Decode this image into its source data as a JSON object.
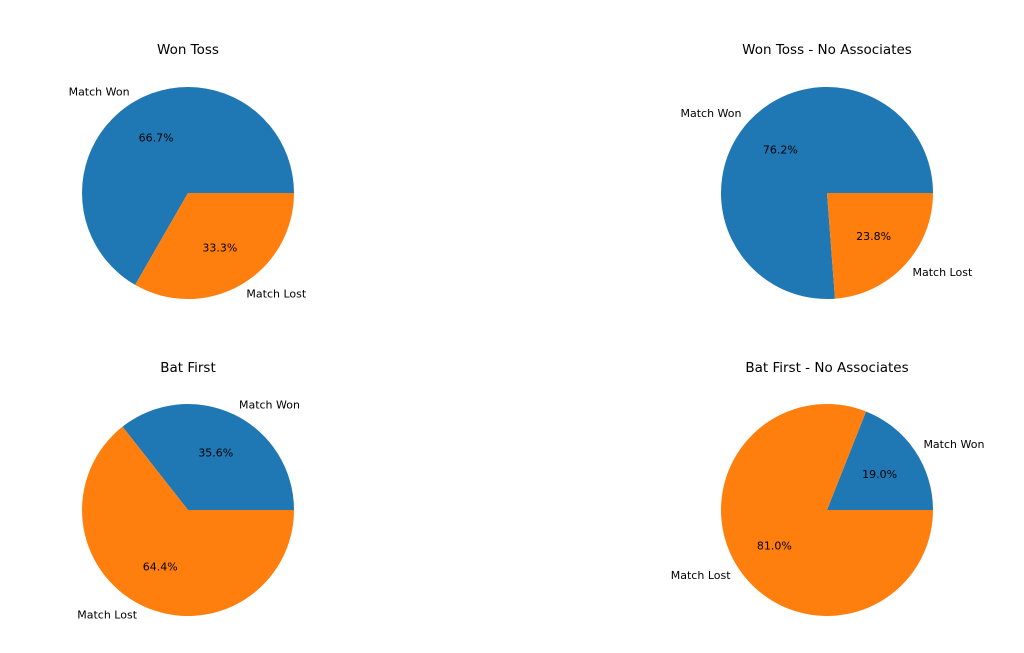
{
  "chart_data": [
    {
      "type": "pie",
      "title": "Won Toss",
      "slices": [
        {
          "label": "Match Won",
          "value": 66.7,
          "pct_label": "66.7%",
          "color": "#1f77b4"
        },
        {
          "label": "Match Lost",
          "value": 33.3,
          "pct_label": "33.3%",
          "color": "#ff7f0e"
        }
      ]
    },
    {
      "type": "pie",
      "title": "Won Toss - No Associates",
      "slices": [
        {
          "label": "Match Won",
          "value": 76.2,
          "pct_label": "76.2%",
          "color": "#1f77b4"
        },
        {
          "label": "Match Lost",
          "value": 23.8,
          "pct_label": "23.8%",
          "color": "#ff7f0e"
        }
      ]
    },
    {
      "type": "pie",
      "title": "Bat First",
      "slices": [
        {
          "label": "Match Won",
          "value": 35.6,
          "pct_label": "35.6%",
          "color": "#1f77b4"
        },
        {
          "label": "Match Lost",
          "value": 64.4,
          "pct_label": "64.4%",
          "color": "#ff7f0e"
        }
      ]
    },
    {
      "type": "pie",
      "title": "Bat First - No Associates",
      "slices": [
        {
          "label": "Match Won",
          "value": 19.0,
          "pct_label": "19.0%",
          "color": "#1f77b4"
        },
        {
          "label": "Match Lost",
          "value": 81.0,
          "pct_label": "81.0%",
          "color": "#ff7f0e"
        }
      ]
    }
  ]
}
